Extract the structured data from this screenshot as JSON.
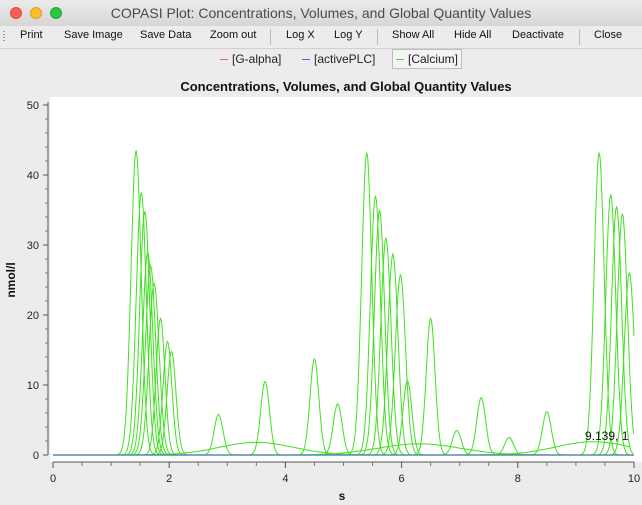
{
  "window": {
    "title": "COPASI Plot: Concentrations, Volumes, and Global Quantity Values"
  },
  "toolbar": {
    "print": "Print",
    "save_image": "Save Image",
    "save_data": "Save Data",
    "zoom_out": "Zoom out",
    "log_x": "Log X",
    "log_y": "Log Y",
    "show_all": "Show All",
    "hide_all": "Hide All",
    "deactivate": "Deactivate",
    "close": "Close"
  },
  "legend": [
    {
      "label": "[G-alpha]",
      "color": "#f06060"
    },
    {
      "label": "[activePLC]",
      "color": "#6060f0"
    },
    {
      "label": "[Calcium]",
      "color": "#40e020"
    }
  ],
  "plot": {
    "readout": "9.139, 1"
  },
  "chart_data": {
    "type": "line",
    "title": "Concentrations, Volumes, and Global Quantity Values",
    "xlabel": "s",
    "ylabel": "nmol/l",
    "xlim": [
      0,
      10
    ],
    "ylim": [
      0,
      50
    ],
    "xticks": [
      "0",
      "2",
      "4",
      "6",
      "8",
      "10"
    ],
    "yticks": [
      "0",
      "10",
      "20",
      "30",
      "40",
      "50"
    ],
    "grid": false,
    "series": [
      {
        "name": "[G-alpha]",
        "color": "#f06060",
        "x": [
          0,
          10
        ],
        "y": [
          0,
          0
        ]
      },
      {
        "name": "[activePLC]",
        "color": "#6060f0",
        "x": [
          0,
          10
        ],
        "y": [
          0,
          0
        ]
      },
      {
        "name": "[Calcium]",
        "color": "#40e020",
        "peaks": [
          [
            1.43,
            43.5
          ],
          [
            1.52,
            37.5
          ],
          [
            1.58,
            34.8
          ],
          [
            1.63,
            29
          ],
          [
            1.68,
            27
          ],
          [
            1.74,
            24.5
          ],
          [
            1.85,
            19.5
          ],
          [
            1.97,
            16.2
          ],
          [
            2.04,
            14.8
          ],
          [
            2.85,
            5.8
          ],
          [
            3.65,
            10.5
          ],
          [
            4.5,
            13.7
          ],
          [
            4.9,
            7.3
          ],
          [
            5.4,
            43.2
          ],
          [
            5.55,
            37
          ],
          [
            5.62,
            35
          ],
          [
            5.73,
            31
          ],
          [
            5.85,
            28.7
          ],
          [
            5.98,
            25.7
          ],
          [
            6.1,
            10.6
          ],
          [
            6.5,
            19.5
          ],
          [
            6.95,
            3.5
          ],
          [
            7.37,
            8.2
          ],
          [
            7.85,
            2.5
          ],
          [
            8.5,
            6.2
          ],
          [
            9.4,
            43.2
          ],
          [
            9.6,
            37.2
          ],
          [
            9.7,
            35.5
          ],
          [
            9.8,
            34.5
          ],
          [
            9.92,
            26
          ]
        ]
      }
    ]
  }
}
